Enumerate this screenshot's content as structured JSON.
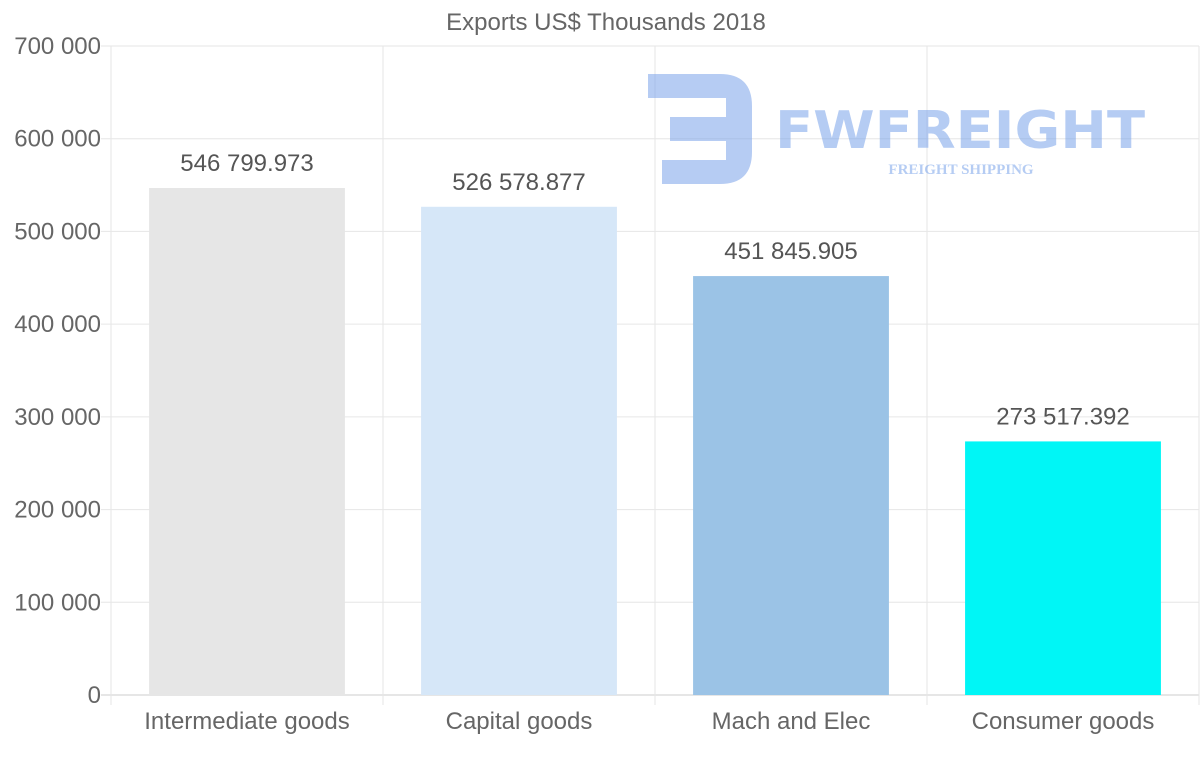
{
  "chart_data": {
    "type": "bar",
    "title": "Exports US$ Thousands 2018",
    "categories": [
      "Intermediate goods",
      "Capital goods",
      "Mach and Elec",
      "Consumer goods"
    ],
    "values": [
      546799.973,
      526578.877,
      451845.905,
      273517.392
    ],
    "value_labels": [
      "546 799.973",
      "526 578.877",
      "451 845.905",
      "273 517.392"
    ],
    "colors": [
      "#e6e6e6",
      "#d6e7f8",
      "#9bc3e6",
      "#00f6f6"
    ],
    "ylim": [
      0,
      700000
    ],
    "yticks": [
      0,
      100000,
      200000,
      300000,
      400000,
      500000,
      600000,
      700000
    ],
    "ytick_labels": [
      "0",
      "100 000",
      "200 000",
      "300 000",
      "400 000",
      "500 000",
      "600 000",
      "700 000"
    ],
    "xlabel": "",
    "ylabel": "",
    "grid": true
  },
  "watermark": {
    "brand": "FWFREIGHT",
    "tagline": "FREIGHT SHIPPING",
    "color": "#7aa3ea"
  }
}
